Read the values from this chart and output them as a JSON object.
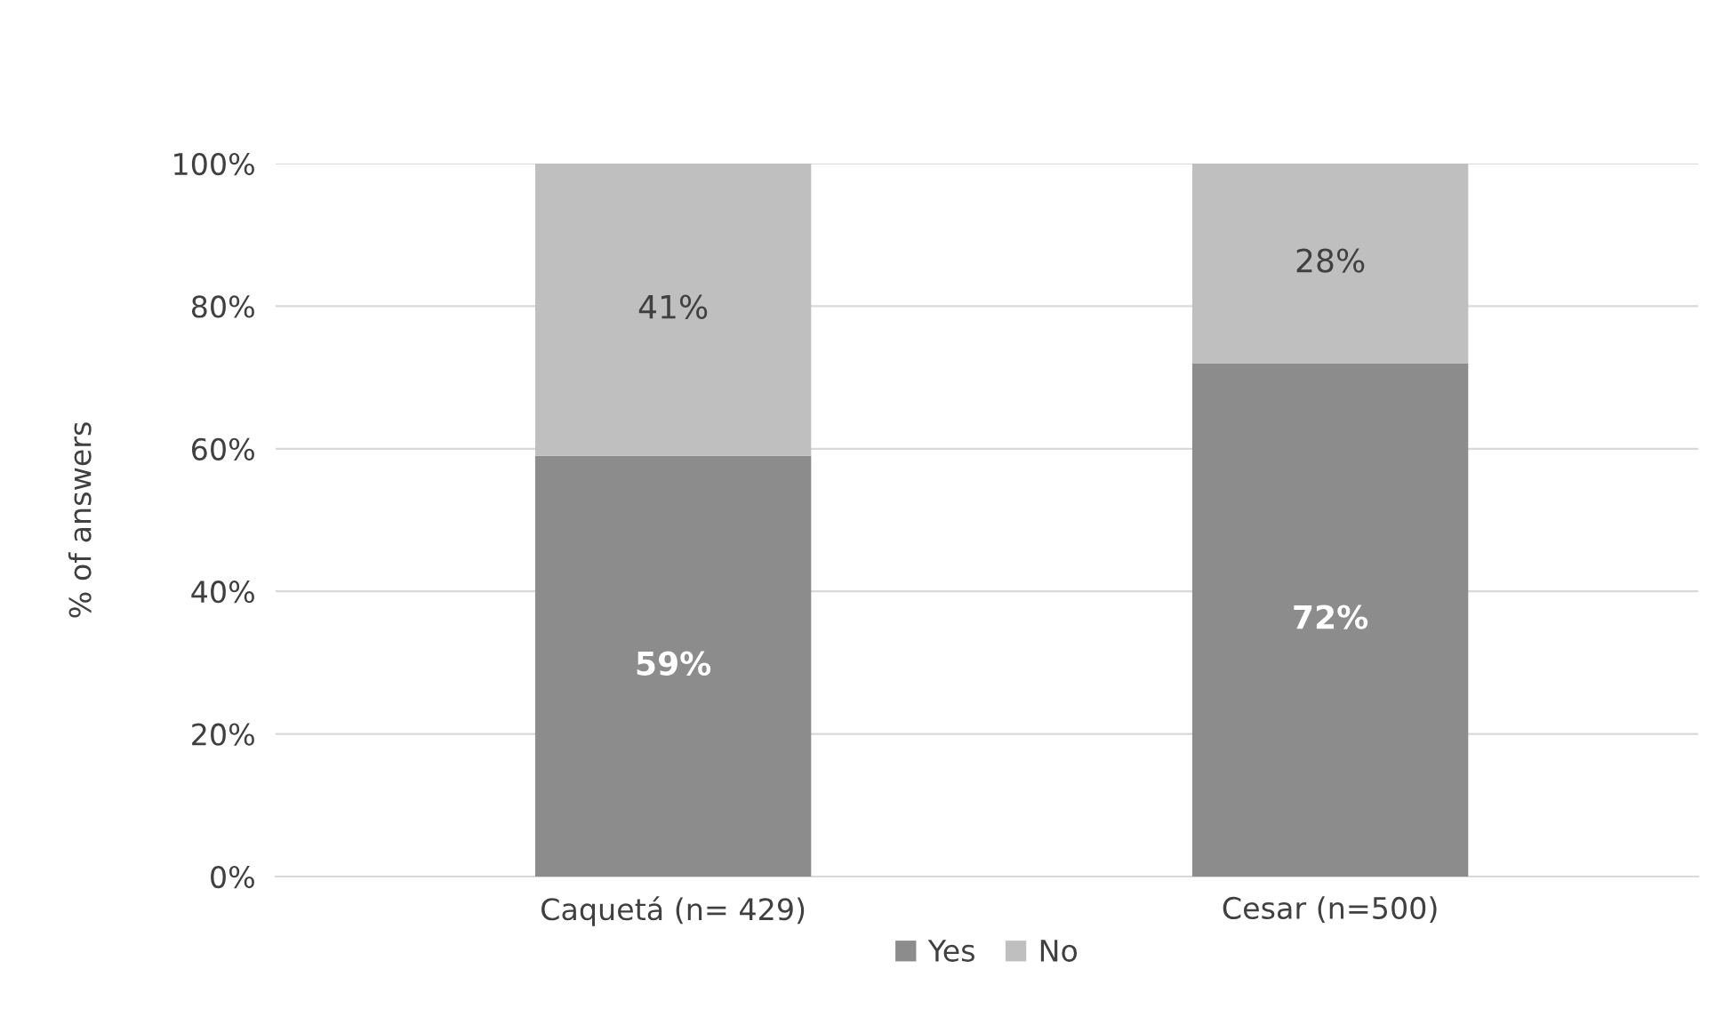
{
  "chart_data": {
    "type": "bar",
    "stacked": true,
    "ylabel": "% of answers",
    "categories": [
      "Caquetá (n= 429)",
      "Cesar (n=500)"
    ],
    "series": [
      {
        "name": "Yes",
        "color": "#8c8c8c",
        "values": [
          59,
          72
        ],
        "value_labels": [
          "59%",
          "72%"
        ]
      },
      {
        "name": "No",
        "color": "#bfbfbf",
        "values": [
          41,
          28
        ],
        "value_labels": [
          "41%",
          "28%"
        ]
      }
    ],
    "ylim": [
      0,
      100
    ],
    "yticks": [
      {
        "value": 0,
        "label": "0%"
      },
      {
        "value": 20,
        "label": "20%"
      },
      {
        "value": 40,
        "label": "40%"
      },
      {
        "value": 60,
        "label": "60%"
      },
      {
        "value": 80,
        "label": "80%"
      },
      {
        "value": 100,
        "label": "100%"
      }
    ],
    "grid": "y",
    "legend": "bottom"
  }
}
